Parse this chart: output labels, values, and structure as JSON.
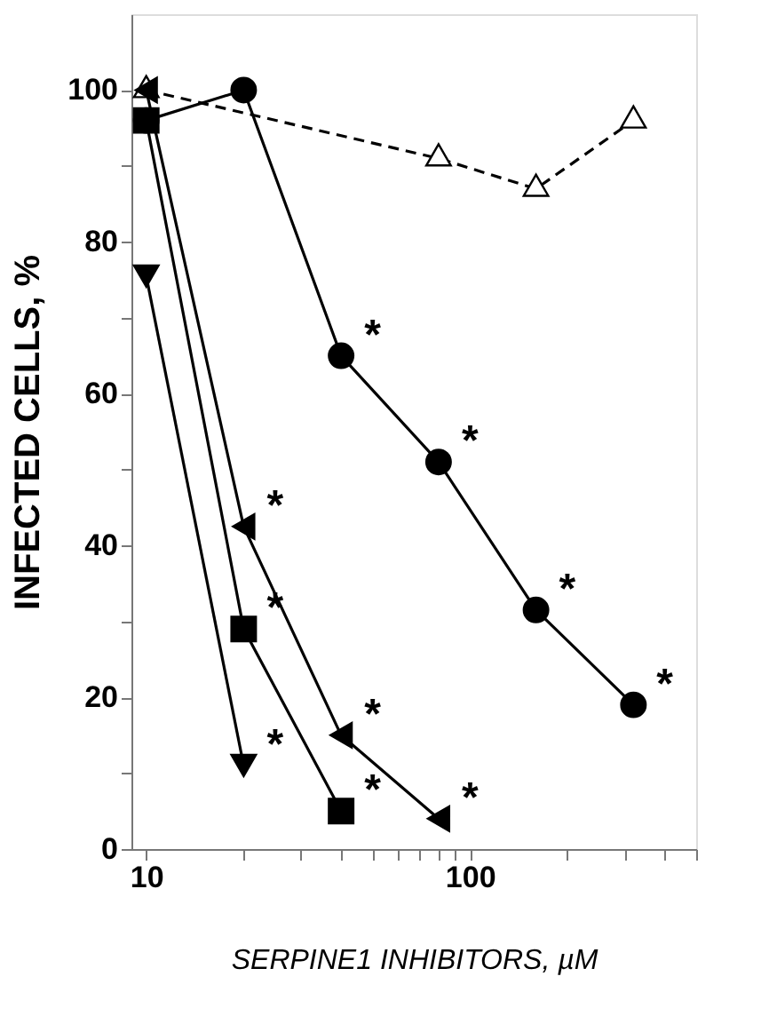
{
  "chart_data": {
    "type": "line",
    "xlabel": "SERPINE1 INHIBITORS, µM",
    "ylabel": "INFECTED CELLS, %",
    "log": "x",
    "xlim": [
      9,
      500
    ],
    "ylim": [
      0,
      110
    ],
    "xticks": [
      10,
      100,
      {
        "value": 20,
        "label": null
      },
      {
        "value": 30,
        "label": null
      },
      {
        "value": 40,
        "label": null
      },
      {
        "value": 50,
        "label": null
      },
      {
        "value": 60,
        "label": null
      },
      {
        "value": 70,
        "label": null
      },
      {
        "value": 80,
        "label": null
      },
      {
        "value": 90,
        "label": null
      },
      {
        "value": 200,
        "label": null
      },
      {
        "value": 300,
        "label": null
      },
      {
        "value": 400,
        "label": null
      },
      {
        "value": 500,
        "label": null
      }
    ],
    "yticks": [
      0,
      20,
      40,
      60,
      80,
      100,
      {
        "value": 10,
        "label": null
      },
      {
        "value": 30,
        "label": null
      },
      {
        "value": 50,
        "label": null
      },
      {
        "value": 70,
        "label": null
      },
      {
        "value": 90,
        "label": null
      }
    ],
    "grid": false,
    "series": [
      {
        "color": "#000000",
        "marker": "triangle-open",
        "line_style": "dashed",
        "x": [
          10,
          80,
          160,
          320
        ],
        "values": [
          100,
          91,
          87,
          96
        ]
      },
      {
        "color": "#000000",
        "marker": "circle",
        "line_style": "solid",
        "x": [
          10,
          20,
          40,
          80,
          160,
          320
        ],
        "values": [
          96,
          100,
          65,
          51,
          31.5,
          19
        ]
      },
      {
        "color": "#000000",
        "marker": "triangle-down",
        "line_style": "solid",
        "x": [
          10,
          20
        ],
        "values": [
          75.5,
          11
        ]
      },
      {
        "color": "#000000",
        "marker": "square",
        "line_style": "solid",
        "x": [
          10,
          20,
          40
        ],
        "values": [
          96,
          29,
          5
        ]
      },
      {
        "color": "#000000",
        "marker": "triangle-left",
        "line_style": "solid",
        "x": [
          10,
          20,
          40,
          80
        ],
        "values": [
          100,
          42.5,
          15,
          4
        ]
      }
    ],
    "annotations": [
      {
        "text": "*",
        "x": 40,
        "y": 65
      },
      {
        "text": "*",
        "x": 80,
        "y": 51
      },
      {
        "text": "*",
        "x": 160,
        "y": 31.5
      },
      {
        "text": "*",
        "x": 320,
        "y": 19
      },
      {
        "text": "*",
        "x": 20,
        "y": 42.5
      },
      {
        "text": "*",
        "x": 40,
        "y": 15
      },
      {
        "text": "*",
        "x": 80,
        "y": 4
      },
      {
        "text": "*",
        "x": 20,
        "y": 29
      },
      {
        "text": "*",
        "x": 40,
        "y": 5
      },
      {
        "text": "*",
        "x": 20,
        "y": 11
      }
    ]
  }
}
